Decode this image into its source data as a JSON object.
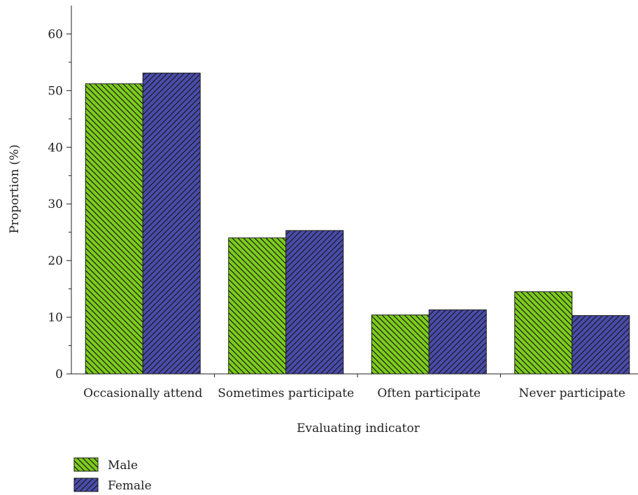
{
  "chart_data": {
    "type": "bar",
    "title": "",
    "xlabel": "Evaluating indicator",
    "ylabel": "Proportion (%)",
    "ylim": [
      0,
      65
    ],
    "yticks": [
      0,
      10,
      20,
      30,
      40,
      50,
      60
    ],
    "categories": [
      "Occasionally attend",
      "Sometimes participate",
      "Often participate",
      "Never participate"
    ],
    "series": [
      {
        "name": "Male",
        "values": [
          51.2,
          24.0,
          10.4,
          14.5
        ],
        "color": "#7ccc1c",
        "hatch": "back-diagonal"
      },
      {
        "name": "Female",
        "values": [
          53.1,
          25.3,
          11.3,
          10.3
        ],
        "color": "#4a4cac",
        "hatch": "forward-diagonal"
      }
    ],
    "grid": false,
    "legend_position": "bottom-left"
  }
}
